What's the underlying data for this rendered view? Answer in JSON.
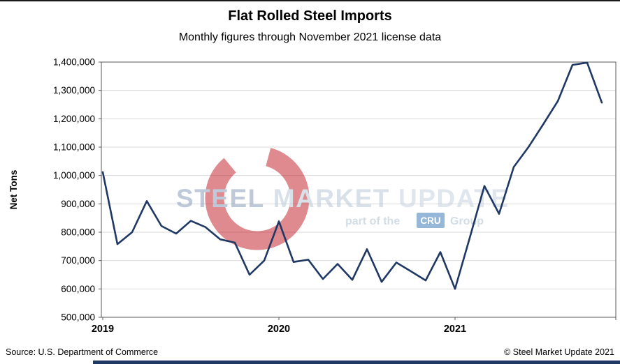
{
  "chart_data": {
    "type": "line",
    "title": "Flat Rolled Steel Imports",
    "subtitle": "Monthly figures through November 2021 license data",
    "ylabel": "Net Tons",
    "xlabel": "",
    "ylim": [
      500000,
      1400000
    ],
    "y_tick_step": 100000,
    "x_tick_labels": [
      "2019",
      "2020",
      "2021"
    ],
    "x": [
      "2019-01",
      "2019-02",
      "2019-03",
      "2019-04",
      "2019-05",
      "2019-06",
      "2019-07",
      "2019-08",
      "2019-09",
      "2019-10",
      "2019-11",
      "2019-12",
      "2020-01",
      "2020-02",
      "2020-03",
      "2020-04",
      "2020-05",
      "2020-06",
      "2020-07",
      "2020-08",
      "2020-09",
      "2020-10",
      "2020-11",
      "2020-12",
      "2021-01",
      "2021-02",
      "2021-03",
      "2021-04",
      "2021-05",
      "2021-06",
      "2021-07",
      "2021-08",
      "2021-09",
      "2021-10",
      "2021-11"
    ],
    "series": [
      {
        "name": "Flat Rolled Steel Imports (Net Tons)",
        "values": [
          1012000,
          758000,
          800000,
          910000,
          822000,
          795000,
          840000,
          818000,
          775000,
          763000,
          650000,
          700000,
          838000,
          695000,
          703000,
          635000,
          688000,
          632000,
          740000,
          625000,
          693000,
          662000,
          630000,
          730000,
          600000,
          780000,
          963000,
          865000,
          1030000,
          1100000,
          1180000,
          1262000,
          1390000,
          1398000,
          1257000
        ]
      }
    ],
    "grid": true,
    "legend": "none"
  },
  "footer": {
    "source": "Source: U.S. Department of Commerce",
    "copyright": "© Steel Market Update 2021"
  },
  "watermark": {
    "steel": "STEEL",
    "market": "MARKET",
    "update": "UPDATE",
    "part_of_the": "part of the",
    "cru": "CRU",
    "group": "Group"
  },
  "colors": {
    "line": "#1f3864",
    "grid": "#d9d9d9",
    "axis": "#595959",
    "tick_text": "#000000",
    "logo_red": "#bf1722",
    "cru_box": "#2e74b5",
    "wm_steel": "#7f97b5",
    "wm_market": "#b3c2d4",
    "wm_update": "#c3cfdd",
    "wm_small": "#a8bccf",
    "accent_bar": "#1f3864"
  }
}
